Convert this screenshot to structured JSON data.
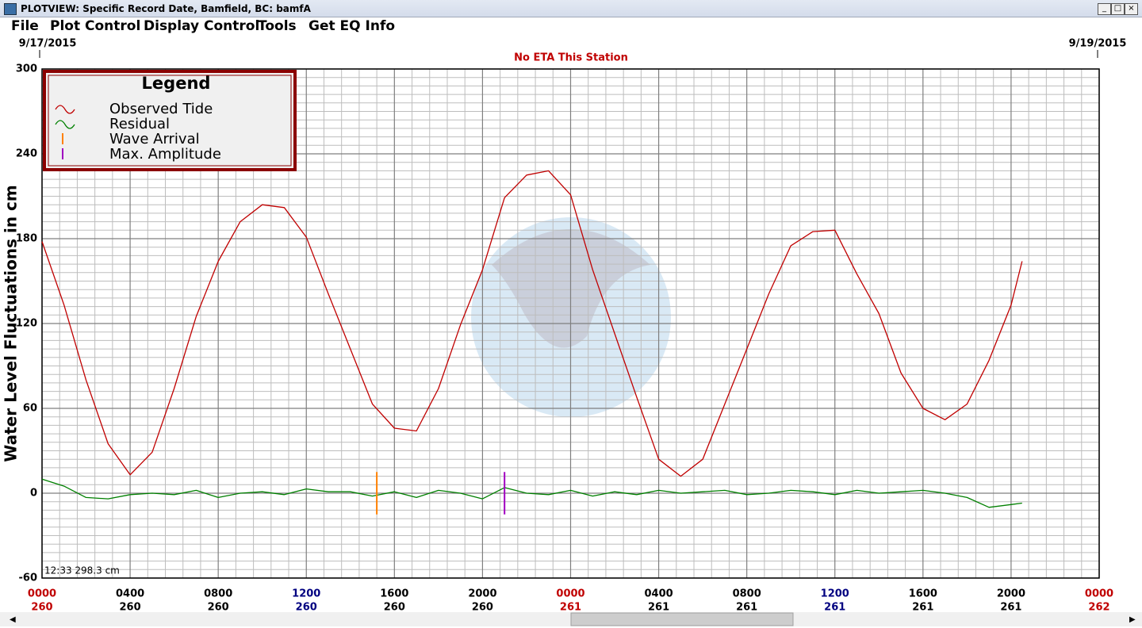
{
  "window": {
    "title": "PLOTVIEW: Specific Record Date, Bamfield, BC: bamfA"
  },
  "menu": [
    "File",
    "Plot Control",
    "Display Control",
    "Tools",
    "Get EQ Info"
  ],
  "chart_data": {
    "type": "line",
    "start_date": "9/17/2015",
    "end_date": "9/19/2015",
    "subtitle": "No ETA This Station",
    "y_label": "Water Level Fluctuations in cm",
    "legend_title": "Legend",
    "readout": "12:33 298.3 cm",
    "x": [
      0,
      1,
      2,
      3,
      4,
      5,
      6,
      7,
      8,
      9,
      10,
      11,
      12,
      13,
      14,
      15,
      16,
      17,
      18,
      19,
      20,
      21,
      22,
      23,
      24,
      25,
      26,
      27,
      28,
      29,
      30,
      31,
      32,
      33,
      34,
      35,
      36,
      37,
      38,
      39,
      40,
      41,
      42,
      43,
      44,
      44.5
    ],
    "series": [
      {
        "name": "Observed Tide",
        "color": "#c00000",
        "values": [
          178,
          133,
          80,
          35,
          13,
          29,
          74,
          125,
          164,
          192,
          204,
          202,
          181,
          141,
          102,
          63,
          46,
          44,
          74,
          119,
          158,
          209,
          225,
          228,
          211,
          158,
          113,
          68,
          24,
          12,
          24,
          63,
          102,
          141,
          175,
          185,
          186,
          155,
          127,
          85,
          60,
          52,
          63,
          94,
          133,
          164
        ]
      },
      {
        "name": "Residual",
        "color": "#008000",
        "values": [
          10,
          5,
          -3,
          -4,
          -1,
          0,
          -1,
          2,
          -3,
          0,
          1,
          -1,
          3,
          1,
          1,
          -2,
          1,
          -3,
          2,
          0,
          -4,
          4,
          0,
          -1,
          2,
          -2,
          1,
          -1,
          2,
          0,
          1,
          2,
          -1,
          0,
          2,
          1,
          -1,
          2,
          0,
          1,
          2,
          0,
          -3,
          -10,
          -8,
          -7
        ]
      }
    ],
    "markers": [
      {
        "name": "Wave Arrival",
        "color": "#ff8000",
        "x": 15.2
      },
      {
        "name": "Max. Amplitude",
        "color": "#a000c0",
        "x": 21.0
      }
    ],
    "xlim": [
      0,
      48
    ],
    "xticks": [
      {
        "value": 0,
        "label": "0000"
      },
      {
        "value": 4,
        "label": "0400"
      },
      {
        "value": 8,
        "label": "0800"
      },
      {
        "value": 12,
        "label": "1200"
      },
      {
        "value": 16,
        "label": "1600"
      },
      {
        "value": 20,
        "label": "2000"
      },
      {
        "value": 24,
        "label": "0000"
      },
      {
        "value": 28,
        "label": "0400"
      },
      {
        "value": 32,
        "label": "0800"
      },
      {
        "value": 36,
        "label": "1200"
      },
      {
        "value": 40,
        "label": "1600"
      },
      {
        "value": 44,
        "label": "2000"
      },
      {
        "value": 48,
        "label": "0000"
      }
    ],
    "xtick_days": [
      "260",
      "260",
      "260",
      "260",
      "260",
      "260",
      "261",
      "261",
      "261",
      "261",
      "261",
      "261",
      "262"
    ],
    "ylim": [
      -60,
      300
    ],
    "yticks": [
      -60,
      0,
      60,
      120,
      180,
      240,
      300
    ],
    "grid": true
  }
}
